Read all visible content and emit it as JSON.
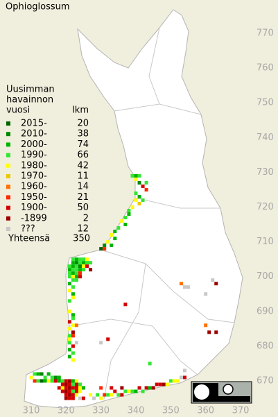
{
  "chart_data": {
    "type": "grid-map",
    "title": "Ophioglossum",
    "legend_title": [
      "Uusimman",
      "havainnon",
      "vuosi"
    ],
    "count_header": "lkm",
    "series": [
      {
        "name": "2015-",
        "color": "#006400",
        "value": 20
      },
      {
        "name": "2010-",
        "color": "#008800",
        "value": 38
      },
      {
        "name": "2000-",
        "color": "#00b400",
        "value": 74
      },
      {
        "name": "1990-",
        "color": "#33e633",
        "value": 66
      },
      {
        "name": "1980-",
        "color": "#ffff00",
        "value": 42
      },
      {
        "name": "1970-",
        "color": "#ecc800",
        "value": 11
      },
      {
        "name": "1960-",
        "color": "#ff7000",
        "value": 14
      },
      {
        "name": "1950-",
        "color": "#ff2800",
        "value": 21
      },
      {
        "name": "1900-",
        "color": "#d20000",
        "value": 50
      },
      {
        "name": "-1899",
        "color": "#9c0000",
        "value": 2
      },
      {
        "name": "???",
        "color": "#c8c8c8",
        "value": 12
      }
    ],
    "total_label": "Yhteensä",
    "total": 350,
    "xlim": [
      310,
      370
    ],
    "xticks": [
      310,
      320,
      330,
      340,
      350,
      360,
      370
    ],
    "ylim": [
      670,
      770
    ],
    "yticks": [
      670,
      680,
      690,
      700,
      710,
      720,
      730,
      740,
      750,
      760,
      770
    ],
    "cells": [
      [
        339,
        729,
        3
      ],
      [
        340,
        729,
        2
      ],
      [
        341,
        729,
        3
      ],
      [
        340,
        728,
        4
      ],
      [
        341,
        727,
        1
      ],
      [
        342,
        726,
        8
      ],
      [
        343,
        727,
        3
      ],
      [
        343,
        725,
        7
      ],
      [
        340,
        724,
        3
      ],
      [
        341,
        723,
        2
      ],
      [
        340,
        722,
        4
      ],
      [
        342,
        722,
        3
      ],
      [
        341,
        721,
        5
      ],
      [
        339,
        720,
        4
      ],
      [
        338,
        719,
        3
      ],
      [
        338,
        718,
        2
      ],
      [
        337,
        717,
        3
      ],
      [
        336,
        716,
        4
      ],
      [
        337,
        715,
        2
      ],
      [
        335,
        714,
        3
      ],
      [
        334,
        713,
        2
      ],
      [
        333,
        712,
        4
      ],
      [
        334,
        711,
        2
      ],
      [
        332,
        710,
        4
      ],
      [
        331,
        709,
        1
      ],
      [
        330,
        708,
        0
      ],
      [
        331,
        708,
        7
      ],
      [
        333,
        709,
        2
      ],
      [
        322,
        705,
        3
      ],
      [
        323,
        705,
        2
      ],
      [
        324,
        705,
        3
      ],
      [
        325,
        705,
        3
      ],
      [
        326,
        705,
        4
      ],
      [
        327,
        704,
        3
      ],
      [
        322,
        704,
        2
      ],
      [
        323,
        704,
        1
      ],
      [
        324,
        704,
        3
      ],
      [
        325,
        704,
        2
      ],
      [
        326,
        704,
        3
      ],
      [
        321,
        703,
        3
      ],
      [
        322,
        703,
        2
      ],
      [
        323,
        703,
        3
      ],
      [
        324,
        703,
        1
      ],
      [
        325,
        703,
        4
      ],
      [
        326,
        703,
        8
      ],
      [
        321,
        702,
        2
      ],
      [
        322,
        702,
        3
      ],
      [
        323,
        702,
        3
      ],
      [
        324,
        702,
        2
      ],
      [
        325,
        702,
        3
      ],
      [
        327,
        702,
        9
      ],
      [
        321,
        701,
        3
      ],
      [
        322,
        701,
        2
      ],
      [
        323,
        701,
        3
      ],
      [
        324,
        701,
        7
      ],
      [
        321,
        700,
        3
      ],
      [
        322,
        700,
        4
      ],
      [
        323,
        700,
        2
      ],
      [
        324,
        700,
        8
      ],
      [
        322,
        699,
        3
      ],
      [
        323,
        699,
        3
      ],
      [
        321,
        698,
        2
      ],
      [
        322,
        697,
        3
      ],
      [
        321,
        696,
        4
      ],
      [
        322,
        695,
        2
      ],
      [
        322,
        694,
        4
      ],
      [
        321,
        693,
        3
      ],
      [
        321,
        690,
        4
      ],
      [
        322,
        689,
        2
      ],
      [
        322,
        688,
        3
      ],
      [
        321,
        687,
        8
      ],
      [
        322,
        686,
        4
      ],
      [
        323,
        686,
        6
      ],
      [
        321,
        685,
        4
      ],
      [
        322,
        684,
        9
      ],
      [
        321,
        683,
        3
      ],
      [
        322,
        683,
        7
      ],
      [
        321,
        682,
        4
      ],
      [
        321,
        681,
        3
      ],
      [
        322,
        680,
        8
      ],
      [
        321,
        679,
        2
      ],
      [
        322,
        678,
        3
      ],
      [
        321,
        677,
        2
      ],
      [
        322,
        676,
        4
      ],
      [
        310,
        671,
        4
      ],
      [
        311,
        672,
        3
      ],
      [
        312,
        672,
        2
      ],
      [
        313,
        672,
        1
      ],
      [
        314,
        671,
        3
      ],
      [
        315,
        672,
        2
      ],
      [
        316,
        671,
        3
      ],
      [
        317,
        671,
        1
      ],
      [
        318,
        671,
        2
      ],
      [
        311,
        670,
        7
      ],
      [
        312,
        670,
        3
      ],
      [
        313,
        670,
        0
      ],
      [
        314,
        670,
        2
      ],
      [
        315,
        670,
        4
      ],
      [
        316,
        670,
        3
      ],
      [
        317,
        670,
        8
      ],
      [
        318,
        670,
        2
      ],
      [
        319,
        670,
        3
      ],
      [
        320,
        670,
        8
      ],
      [
        321,
        670,
        9
      ],
      [
        322,
        670,
        2
      ],
      [
        323,
        670,
        4
      ],
      [
        319,
        669,
        8
      ],
      [
        320,
        669,
        9
      ],
      [
        321,
        669,
        8
      ],
      [
        322,
        669,
        3
      ],
      [
        323,
        669,
        8
      ],
      [
        324,
        669,
        3
      ],
      [
        318,
        668,
        8
      ],
      [
        319,
        668,
        4
      ],
      [
        320,
        668,
        8
      ],
      [
        321,
        668,
        9
      ],
      [
        322,
        668,
        8
      ],
      [
        323,
        668,
        8
      ],
      [
        324,
        668,
        4
      ],
      [
        325,
        668,
        2
      ],
      [
        319,
        667,
        8
      ],
      [
        320,
        667,
        9
      ],
      [
        321,
        667,
        8
      ],
      [
        322,
        667,
        3
      ],
      [
        323,
        667,
        8
      ],
      [
        324,
        667,
        4
      ],
      [
        320,
        666,
        8
      ],
      [
        321,
        666,
        9
      ],
      [
        322,
        666,
        8
      ],
      [
        323,
        666,
        4
      ],
      [
        320,
        665,
        9
      ],
      [
        321,
        665,
        8
      ],
      [
        322,
        665,
        8
      ],
      [
        324,
        665,
        10
      ],
      [
        325,
        665,
        8
      ],
      [
        327,
        666,
        4
      ],
      [
        328,
        665,
        10
      ],
      [
        329,
        666,
        3
      ],
      [
        330,
        665,
        4
      ],
      [
        331,
        666,
        7
      ],
      [
        332,
        666,
        3
      ],
      [
        333,
        666,
        4
      ],
      [
        334,
        667,
        8
      ],
      [
        335,
        666,
        3
      ],
      [
        336,
        666,
        8
      ],
      [
        337,
        667,
        3
      ],
      [
        338,
        667,
        4
      ],
      [
        339,
        667,
        3
      ],
      [
        340,
        667,
        2
      ],
      [
        341,
        668,
        8
      ],
      [
        342,
        667,
        3
      ],
      [
        343,
        668,
        8
      ],
      [
        344,
        668,
        2
      ],
      [
        345,
        668,
        9
      ],
      [
        346,
        669,
        8
      ],
      [
        347,
        669,
        8
      ],
      [
        348,
        669,
        9
      ],
      [
        349,
        669,
        4
      ],
      [
        350,
        670,
        3
      ],
      [
        351,
        670,
        4
      ],
      [
        352,
        670,
        4
      ],
      [
        353,
        671,
        10
      ],
      [
        354,
        671,
        8
      ],
      [
        330,
        668,
        7
      ],
      [
        333,
        668,
        8
      ],
      [
        336,
        668,
        9
      ],
      [
        337,
        692,
        8
      ],
      [
        332,
        682,
        8
      ],
      [
        353,
        698,
        6
      ],
      [
        354,
        697,
        10
      ],
      [
        355,
        697,
        10
      ],
      [
        360,
        695,
        10
      ],
      [
        362,
        699,
        10
      ],
      [
        363,
        698,
        9
      ],
      [
        360,
        686,
        6
      ],
      [
        361,
        684,
        9
      ],
      [
        363,
        684,
        9
      ],
      [
        323,
        681,
        10
      ],
      [
        330,
        681,
        10
      ],
      [
        354,
        673,
        10
      ],
      [
        344,
        675,
        3
      ]
    ]
  }
}
